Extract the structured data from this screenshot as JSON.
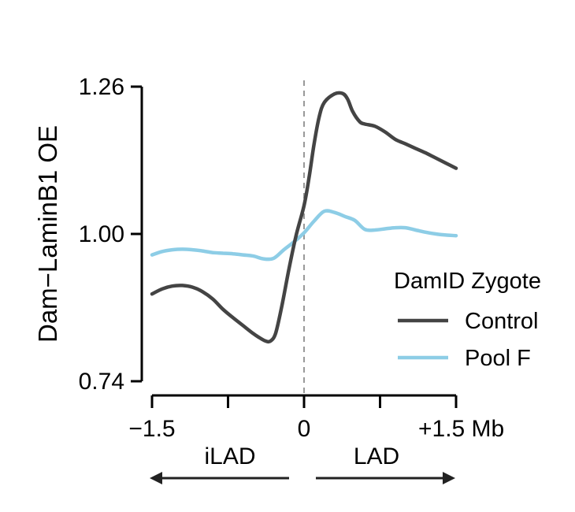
{
  "chart_data": {
    "type": "line",
    "ylabel": "Dam−LaminB1 OE",
    "ylim": [
      0.74,
      1.26
    ],
    "yticks": [
      {
        "value": 0.74,
        "label": "0.74"
      },
      {
        "value": 1.0,
        "label": "1.00"
      },
      {
        "value": 1.26,
        "label": "1.26"
      }
    ],
    "xlim": [
      -1.5,
      1.5
    ],
    "xticks": [
      {
        "value": -1.5,
        "label": "−1.5"
      },
      {
        "value": -0.75,
        "label": ""
      },
      {
        "value": 0,
        "label": "0"
      },
      {
        "value": 0.75,
        "label": ""
      },
      {
        "value": 1.5,
        "label": "+1.5 Mb"
      }
    ],
    "center_line": {
      "x": 0,
      "style": "dashed"
    },
    "regions": [
      {
        "label": "iLAD",
        "direction": "left"
      },
      {
        "label": "LAD",
        "direction": "right"
      }
    ],
    "legend_title": "DamID Zygote",
    "series": [
      {
        "name": "Control",
        "color": "#444444",
        "x": [
          -1.5,
          -1.4,
          -1.3,
          -1.2,
          -1.1,
          -1.0,
          -0.9,
          -0.8,
          -0.7,
          -0.6,
          -0.5,
          -0.45,
          -0.38,
          -0.33,
          -0.28,
          -0.22,
          -0.15,
          -0.08,
          0.0,
          0.05,
          0.1,
          0.15,
          0.2,
          0.3,
          0.38,
          0.43,
          0.48,
          0.55,
          0.6,
          0.7,
          0.8,
          0.9,
          1.0,
          1.1,
          1.2,
          1.3,
          1.4,
          1.5
        ],
        "y": [
          0.894,
          0.903,
          0.908,
          0.909,
          0.906,
          0.898,
          0.885,
          0.867,
          0.852,
          0.838,
          0.824,
          0.818,
          0.811,
          0.811,
          0.825,
          0.872,
          0.937,
          0.996,
          1.05,
          1.1,
          1.16,
          1.207,
          1.232,
          1.247,
          1.248,
          1.238,
          1.216,
          1.198,
          1.194,
          1.19,
          1.18,
          1.167,
          1.159,
          1.151,
          1.143,
          1.134,
          1.125,
          1.116
        ]
      },
      {
        "name": "Pool F",
        "color": "#8dcde6",
        "x": [
          -1.5,
          -1.4,
          -1.3,
          -1.2,
          -1.1,
          -1.0,
          -0.9,
          -0.8,
          -0.7,
          -0.6,
          -0.5,
          -0.4,
          -0.3,
          -0.2,
          -0.1,
          0.0,
          0.1,
          0.2,
          0.3,
          0.4,
          0.5,
          0.6,
          0.7,
          0.8,
          0.9,
          1.0,
          1.1,
          1.2,
          1.3,
          1.4,
          1.5
        ],
        "y": [
          0.963,
          0.969,
          0.972,
          0.973,
          0.972,
          0.97,
          0.967,
          0.966,
          0.965,
          0.963,
          0.961,
          0.956,
          0.957,
          0.972,
          0.986,
          1.002,
          1.023,
          1.04,
          1.038,
          1.031,
          1.024,
          1.008,
          1.007,
          1.009,
          1.011,
          1.011,
          1.007,
          1.003,
          1.0,
          0.998,
          0.997
        ]
      }
    ]
  }
}
